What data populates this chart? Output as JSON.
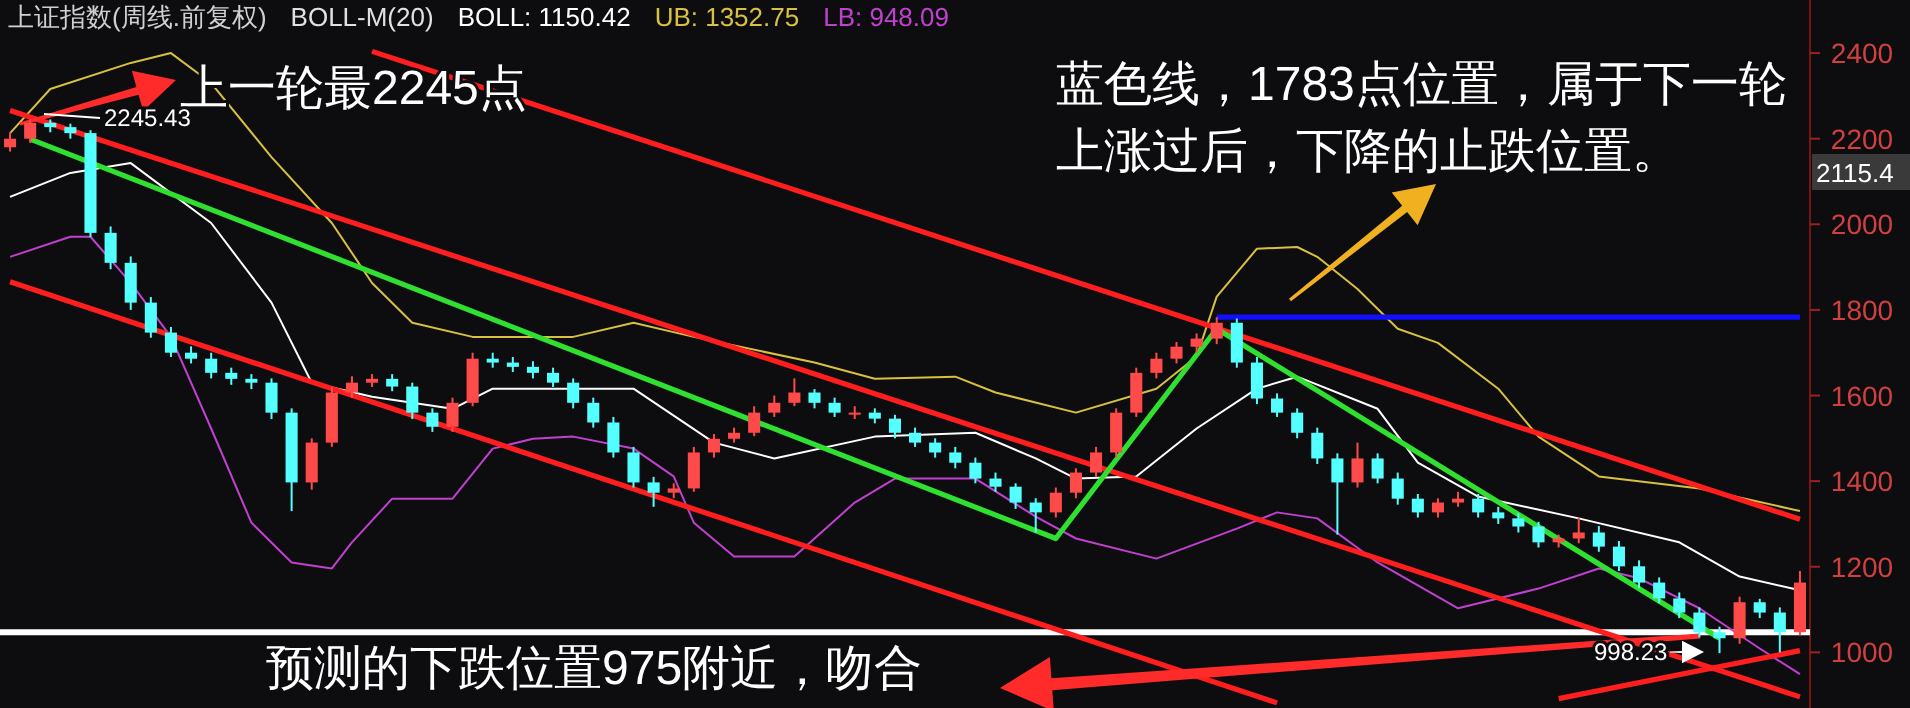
{
  "chart_data": {
    "type": "candlestick",
    "title": "上证指数(周线.前复权)",
    "subtitle": "BOLL-M(20)",
    "grid": false,
    "categories": [
      null,
      null,
      null,
      null,
      null,
      null,
      null,
      null,
      null,
      null,
      null,
      null,
      null,
      null,
      null,
      null,
      null,
      null,
      null,
      null,
      null,
      null,
      null,
      null,
      null,
      null,
      null,
      null,
      null,
      null,
      null,
      null,
      null,
      null,
      null,
      null,
      null,
      null,
      null,
      null,
      null,
      null,
      null,
      null,
      null,
      null,
      null,
      null,
      null,
      null,
      null,
      null,
      null,
      null,
      null,
      null,
      null,
      null,
      null,
      null,
      null,
      null,
      null,
      null,
      null,
      null,
      null,
      null,
      null,
      null,
      null,
      null,
      null,
      null,
      null,
      null,
      null,
      null,
      null,
      null,
      null,
      null,
      null,
      null,
      null,
      null,
      null,
      null,
      null,
      null
    ],
    "colors": [
      "#ff4a4a",
      "#ff4a4a",
      "#54ffff",
      "#54ffff",
      "#54ffff",
      "#54ffff",
      "#54ffff",
      "#54ffff",
      "#54ffff",
      "#54ffff",
      "#54ffff",
      "#54ffff",
      "#54ffff",
      "#54ffff",
      "#54ffff",
      "#ff4a4a",
      "#ff4a4a",
      "#ff4a4a",
      "#ff4a4a",
      "#54ffff",
      "#54ffff",
      "#54ffff",
      "#ff4a4a",
      "#ff4a4a",
      "#54ffff",
      "#54ffff",
      "#54ffff",
      "#54ffff",
      "#54ffff",
      "#54ffff",
      "#54ffff",
      "#54ffff",
      "#54ffff",
      "#ff4a4a",
      "#ff4a4a",
      "#ff4a4a",
      "#ff4a4a",
      "#ff4a4a",
      "#ff4a4a",
      "#ff4a4a",
      "#54ffff",
      "#54ffff",
      "#ff4a4a",
      "#54ffff",
      "#54ffff",
      "#54ffff",
      "#54ffff",
      "#54ffff",
      "#54ffff",
      "#54ffff",
      "#54ffff",
      "#54ffff",
      "#ff4a4a",
      "#ff4a4a",
      "#ff4a4a",
      "#ff4a4a",
      "#ff4a4a",
      "#ff4a4a",
      "#ff4a4a",
      "#ff4a4a",
      "#ff4a4a",
      "#54ffff",
      "#54ffff",
      "#54ffff",
      "#54ffff",
      "#54ffff",
      "#54ffff",
      "#ff4a4a",
      "#54ffff",
      "#54ffff",
      "#54ffff",
      "#ff4a4a",
      "#ff4a4a",
      "#54ffff",
      "#54ffff",
      "#54ffff",
      "#54ffff",
      "#ff4a4a",
      "#ff4a4a",
      "#54ffff",
      "#54ffff",
      "#54ffff",
      "#54ffff",
      "#54ffff",
      "#54ffff",
      "#54ffff",
      "#ff4a4a",
      "#54ffff",
      "#54ffff",
      "#ff4a4a"
    ],
    "ohlc": [
      [
        2180,
        2215,
        2170,
        2200
      ],
      [
        2200,
        2245.43,
        2190,
        2237
      ],
      [
        2237,
        2245,
        2215,
        2227
      ],
      [
        2227,
        2235,
        2200,
        2213
      ],
      [
        2213,
        2220,
        1970,
        1980
      ],
      [
        1980,
        1995,
        1895,
        1910
      ],
      [
        1910,
        1925,
        1800,
        1817
      ],
      [
        1817,
        1830,
        1735,
        1747
      ],
      [
        1747,
        1760,
        1690,
        1700
      ],
      [
        1700,
        1715,
        1675,
        1686
      ],
      [
        1686,
        1700,
        1640,
        1653
      ],
      [
        1653,
        1665,
        1625,
        1639
      ],
      [
        1639,
        1650,
        1615,
        1630
      ],
      [
        1630,
        1640,
        1545,
        1560
      ],
      [
        1560,
        1570,
        1330,
        1397
      ],
      [
        1397,
        1500,
        1380,
        1490
      ],
      [
        1490,
        1620,
        1480,
        1607
      ],
      [
        1607,
        1645,
        1595,
        1630
      ],
      [
        1630,
        1650,
        1620,
        1639
      ],
      [
        1639,
        1650,
        1610,
        1621
      ],
      [
        1621,
        1630,
        1545,
        1560
      ],
      [
        1560,
        1570,
        1515,
        1527
      ],
      [
        1527,
        1595,
        1515,
        1583
      ],
      [
        1583,
        1700,
        1575,
        1686
      ],
      [
        1686,
        1700,
        1665,
        1677
      ],
      [
        1677,
        1690,
        1655,
        1667
      ],
      [
        1667,
        1680,
        1640,
        1653
      ],
      [
        1653,
        1665,
        1620,
        1630
      ],
      [
        1630,
        1640,
        1570,
        1583
      ],
      [
        1583,
        1595,
        1525,
        1537
      ],
      [
        1537,
        1550,
        1455,
        1467
      ],
      [
        1467,
        1480,
        1385,
        1397
      ],
      [
        1397,
        1410,
        1340,
        1373
      ],
      [
        1373,
        1395,
        1360,
        1383
      ],
      [
        1383,
        1480,
        1375,
        1467
      ],
      [
        1467,
        1510,
        1455,
        1499
      ],
      [
        1499,
        1525,
        1490,
        1513
      ],
      [
        1513,
        1575,
        1505,
        1560
      ],
      [
        1560,
        1600,
        1550,
        1583
      ],
      [
        1583,
        1640,
        1575,
        1607
      ],
      [
        1607,
        1615,
        1570,
        1583
      ],
      [
        1583,
        1595,
        1550,
        1560
      ],
      [
        1560,
        1575,
        1545,
        1560
      ],
      [
        1560,
        1570,
        1535,
        1546
      ],
      [
        1546,
        1555,
        1500,
        1513
      ],
      [
        1513,
        1525,
        1480,
        1490
      ],
      [
        1490,
        1500,
        1455,
        1467
      ],
      [
        1467,
        1480,
        1430,
        1443
      ],
      [
        1443,
        1455,
        1395,
        1406
      ],
      [
        1406,
        1420,
        1375,
        1387
      ],
      [
        1387,
        1395,
        1335,
        1350
      ],
      [
        1350,
        1360,
        1280,
        1327
      ],
      [
        1327,
        1385,
        1315,
        1373
      ],
      [
        1373,
        1430,
        1360,
        1420
      ],
      [
        1420,
        1480,
        1410,
        1467
      ],
      [
        1467,
        1570,
        1455,
        1560
      ],
      [
        1560,
        1665,
        1550,
        1653
      ],
      [
        1653,
        1700,
        1640,
        1686
      ],
      [
        1686,
        1725,
        1675,
        1714
      ],
      [
        1714,
        1745,
        1700,
        1733
      ],
      [
        1733,
        1783,
        1720,
        1770
      ],
      [
        1770,
        1780,
        1665,
        1677
      ],
      [
        1677,
        1690,
        1580,
        1593
      ],
      [
        1593,
        1605,
        1550,
        1560
      ],
      [
        1560,
        1570,
        1500,
        1513
      ],
      [
        1513,
        1525,
        1440,
        1453
      ],
      [
        1453,
        1465,
        1275,
        1397
      ],
      [
        1397,
        1490,
        1385,
        1453
      ],
      [
        1453,
        1465,
        1395,
        1406
      ],
      [
        1406,
        1420,
        1345,
        1359
      ],
      [
        1359,
        1370,
        1315,
        1327
      ],
      [
        1327,
        1360,
        1315,
        1350
      ],
      [
        1350,
        1375,
        1340,
        1359
      ],
      [
        1359,
        1370,
        1315,
        1327
      ],
      [
        1327,
        1340,
        1300,
        1313
      ],
      [
        1313,
        1325,
        1280,
        1294
      ],
      [
        1294,
        1305,
        1245,
        1257
      ],
      [
        1257,
        1275,
        1245,
        1266
      ],
      [
        1266,
        1315,
        1255,
        1280
      ],
      [
        1280,
        1295,
        1235,
        1247
      ],
      [
        1247,
        1260,
        1190,
        1201
      ],
      [
        1201,
        1215,
        1150,
        1163
      ],
      [
        1163,
        1175,
        1115,
        1126
      ],
      [
        1126,
        1140,
        1080,
        1093
      ],
      [
        1093,
        1105,
        1035,
        1047
      ],
      [
        1047,
        1060,
        998.23,
        1033
      ],
      [
        1033,
        1130,
        1020,
        1117
      ],
      [
        1117,
        1125,
        1080,
        1093
      ],
      [
        1093,
        1105,
        1000,
        1047
      ],
      [
        1047,
        1190,
        1040,
        1163
      ]
    ],
    "series": [
      {
        "name": "BOLL: 1150.42",
        "type": "line",
        "color": "#ffffff",
        "values": [
          2064,
          null,
          null,
          2120,
          null,
          null,
          2143,
          null,
          null,
          null,
          2003,
          null,
          null,
          1817,
          null,
          1630,
          null,
          null,
          1597,
          null,
          null,
          null,
          1569,
          null,
          1616,
          null,
          null,
          null,
          null,
          null,
          null,
          1616,
          null,
          null,
          null,
          1490,
          null,
          null,
          1453,
          null,
          null,
          null,
          null,
          1504,
          null,
          null,
          null,
          null,
          1513,
          null,
          null,
          1453,
          null,
          1406,
          null,
          null,
          1411,
          null,
          null,
          1523,
          null,
          null,
          1616,
          null,
          1644,
          null,
          null,
          null,
          1569,
          null,
          1443,
          null,
          null,
          1364,
          null,
          null,
          null,
          null,
          1313,
          null,
          null,
          null,
          null,
          1257,
          null,
          null,
          1177,
          null,
          null,
          1145
        ]
      },
      {
        "name": "UB: 1352.75",
        "type": "line",
        "color": "#d8c040",
        "values": [
          2213,
          null,
          2316,
          null,
          null,
          null,
          2377,
          null,
          2400,
          null,
          2330,
          null,
          null,
          2157,
          null,
          null,
          2003,
          null,
          1863,
          null,
          1770,
          null,
          null,
          1737,
          null,
          null,
          null,
          null,
          1737,
          null,
          null,
          1770,
          null,
          null,
          1737,
          null,
          null,
          null,
          null,
          null,
          1677,
          null,
          null,
          1639,
          null,
          null,
          null,
          1644,
          null,
          1607,
          null,
          null,
          null,
          1560,
          null,
          null,
          null,
          1616,
          null,
          1691,
          1831,
          null,
          1943,
          null,
          1947,
          1924,
          null,
          1849,
          null,
          1756,
          null,
          1723,
          null,
          null,
          1616,
          null,
          1504,
          null,
          null,
          1411,
          null,
          null,
          null,
          null,
          1383,
          null,
          null,
          null,
          null,
          1330
        ]
      },
      {
        "name": "LB: 948.09",
        "type": "line",
        "color": "#c040d0",
        "values": [
          1924,
          null,
          null,
          1971,
          1971,
          null,
          1863,
          null,
          1737,
          null,
          1523,
          null,
          1303,
          null,
          1210,
          null,
          1196,
          1257,
          null,
          1359,
          null,
          null,
          1359,
          null,
          1476,
          null,
          1499,
          null,
          1504,
          null,
          null,
          1476,
          null,
          1411,
          1303,
          null,
          1224,
          null,
          null,
          1224,
          null,
          null,
          1350,
          null,
          1406,
          null,
          null,
          null,
          1406,
          null,
          null,
          1317,
          null,
          1266,
          null,
          null,
          null,
          1219,
          null,
          null,
          null,
          1289,
          null,
          1327,
          null,
          1313,
          null,
          null,
          1210,
          null,
          null,
          null,
          1103,
          null,
          null,
          null,
          1149,
          null,
          null,
          1196,
          null,
          1173,
          null,
          null,
          1103,
          null,
          null,
          1009,
          null,
          949
        ]
      },
      {
        "type": "line",
        "color": "#ff1e1e",
        "values": [
          null,
          null,
          null,
          null,
          null,
          null,
          null,
          null,
          null,
          null,
          null,
          null,
          null,
          null,
          null,
          null,
          null,
          null,
          2404,
          null,
          null,
          null,
          null,
          null,
          null,
          null,
          null,
          null,
          null,
          null,
          null,
          null,
          null,
          null,
          null,
          null,
          null,
          null,
          null,
          null,
          null,
          null,
          null,
          null,
          null,
          null,
          null,
          null,
          null,
          null,
          null,
          null,
          null,
          null,
          null,
          null,
          null,
          null,
          null,
          null,
          null,
          null,
          null,
          null,
          null,
          null,
          null,
          null,
          null,
          null,
          null,
          null,
          null,
          null,
          null,
          null,
          null,
          null,
          null,
          null,
          null,
          null,
          null,
          null,
          null,
          null,
          null,
          null,
          null,
          1311
        ]
      },
      {
        "type": "line",
        "color": "#ff1e1e",
        "values": [
          2266,
          null,
          null,
          null,
          null,
          null,
          null,
          null,
          null,
          null,
          null,
          null,
          null,
          null,
          null,
          null,
          null,
          null,
          null,
          null,
          null,
          null,
          null,
          null,
          null,
          null,
          null,
          null,
          null,
          null,
          null,
          null,
          null,
          null,
          null,
          null,
          null,
          null,
          null,
          null,
          null,
          null,
          null,
          null,
          null,
          null,
          null,
          null,
          null,
          null,
          null,
          null,
          null,
          null,
          null,
          null,
          null,
          null,
          null,
          null,
          null,
          null,
          null,
          null,
          null,
          null,
          null,
          null,
          null,
          null,
          null,
          null,
          null,
          null,
          null,
          null,
          null,
          null,
          null,
          null,
          null,
          null,
          null,
          null,
          null,
          null,
          null,
          null,
          null,
          896
        ]
      },
      {
        "type": "line",
        "color": "#ff1e1e",
        "values": [
          1866,
          null,
          null,
          null,
          null,
          null,
          null,
          null,
          null,
          null,
          null,
          null,
          null,
          null,
          null,
          null,
          null,
          null,
          null,
          null,
          null,
          null,
          null,
          null,
          null,
          null,
          null,
          null,
          null,
          null,
          null,
          null,
          null,
          null,
          null,
          null,
          null,
          null,
          null,
          null,
          null,
          null,
          null,
          null,
          null,
          null,
          null,
          null,
          null,
          null,
          null,
          null,
          null,
          null,
          null,
          null,
          null,
          null,
          null,
          null,
          null,
          null,
          null,
          882,
          null,
          null,
          null,
          null,
          null,
          null,
          null,
          null,
          null,
          null,
          null,
          null,
          null,
          null,
          null,
          null,
          null,
          null,
          null,
          null,
          null,
          null,
          null,
          null,
          null,
          null
        ]
      },
      {
        "type": "line",
        "color": "#ff1e1e",
        "values": [
          null,
          null,
          null,
          null,
          null,
          null,
          null,
          null,
          null,
          null,
          null,
          null,
          null,
          null,
          null,
          null,
          null,
          null,
          null,
          null,
          null,
          null,
          null,
          null,
          null,
          null,
          null,
          null,
          null,
          null,
          null,
          null,
          null,
          null,
          null,
          null,
          null,
          null,
          null,
          null,
          null,
          null,
          null,
          null,
          null,
          null,
          null,
          null,
          null,
          null,
          null,
          null,
          null,
          null,
          null,
          null,
          null,
          null,
          null,
          null,
          null,
          null,
          null,
          null,
          null,
          null,
          null,
          null,
          null,
          null,
          null,
          null,
          null,
          null,
          null,
          null,
          null,
          892,
          null,
          null,
          null,
          null,
          null,
          null,
          null,
          null,
          null,
          null,
          null,
          1004
        ]
      },
      {
        "type": "line",
        "color": "#30e030",
        "values": [
          null,
          2199,
          null,
          null,
          null,
          null,
          null,
          null,
          null,
          null,
          null,
          null,
          null,
          null,
          null,
          null,
          null,
          null,
          null,
          null,
          null,
          null,
          null,
          null,
          null,
          null,
          null,
          null,
          null,
          null,
          null,
          null,
          null,
          null,
          null,
          null,
          null,
          null,
          null,
          null,
          null,
          null,
          null,
          null,
          null,
          null,
          null,
          null,
          null,
          null,
          null,
          null,
          1266,
          null,
          null,
          null,
          null,
          null,
          null,
          null,
          1756,
          null,
          null,
          null,
          null,
          null,
          null,
          null,
          null,
          null,
          null,
          null,
          null,
          null,
          null,
          null,
          null,
          null,
          null,
          null,
          null,
          null,
          null,
          null,
          null,
          1033,
          null,
          null,
          null,
          null
        ]
      },
      {
        "type": "line",
        "color": "#1010ff",
        "values": [
          null,
          null,
          null,
          null,
          null,
          null,
          null,
          null,
          null,
          null,
          null,
          null,
          null,
          null,
          null,
          null,
          null,
          null,
          null,
          null,
          null,
          null,
          null,
          null,
          null,
          null,
          null,
          null,
          null,
          null,
          null,
          null,
          null,
          null,
          null,
          null,
          null,
          null,
          null,
          null,
          null,
          null,
          null,
          null,
          null,
          null,
          null,
          null,
          null,
          null,
          null,
          null,
          null,
          null,
          null,
          null,
          null,
          null,
          null,
          null,
          1783,
          null,
          null,
          null,
          null,
          null,
          null,
          null,
          null,
          null,
          null,
          null,
          null,
          null,
          null,
          null,
          null,
          null,
          null,
          null,
          null,
          null,
          null,
          null,
          null,
          null,
          null,
          null,
          null,
          1783
        ]
      }
    ],
    "ref_lines": [
      {
        "axis": "y",
        "value": 1047,
        "color": "#ffffff"
      }
    ],
    "ylim": [
      870,
      2524
    ],
    "yticks": [
      1000,
      1200,
      1400,
      1600,
      1800,
      2000,
      2200,
      2400
    ],
    "annotations": [
      "上一轮最2245点",
      "2245.43",
      "蓝色线，1783点位置，属于下一轮上涨过后，下降的止跌位置。",
      "预测的下跌位置975附近，吻合",
      "998.23",
      "2115.4"
    ]
  }
}
